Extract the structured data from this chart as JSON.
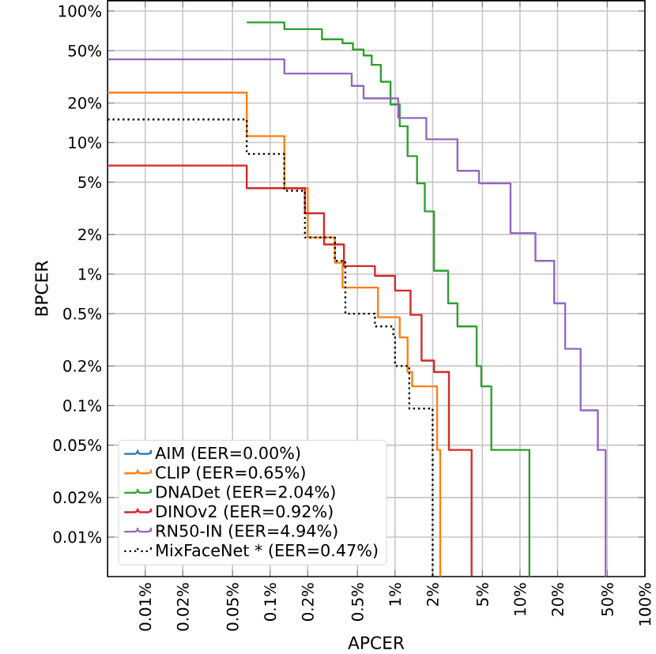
{
  "chart_data": {
    "type": "step",
    "xlabel": "APCER",
    "ylabel": "BPCER",
    "log": "xy",
    "grid": true,
    "legend": "bottom left",
    "xlim": [
      0.005,
      100
    ],
    "ylim": [
      0.005,
      120
    ],
    "xticks": [
      {
        "value": 0.01,
        "label": "0.01%"
      },
      {
        "value": 0.02,
        "label": "0.02%"
      },
      {
        "value": 0.05,
        "label": "0.05%"
      },
      {
        "value": 0.1,
        "label": "0.1%"
      },
      {
        "value": 0.2,
        "label": "0.2%"
      },
      {
        "value": 0.5,
        "label": "0.5%"
      },
      {
        "value": 1,
        "label": "1%"
      },
      {
        "value": 2,
        "label": "2%"
      },
      {
        "value": 5,
        "label": "5%"
      },
      {
        "value": 10,
        "label": "10%"
      },
      {
        "value": 20,
        "label": "20%"
      },
      {
        "value": 50,
        "label": "50%"
      },
      {
        "value": 100,
        "label": "100%"
      }
    ],
    "yticks": [
      {
        "value": 0.01,
        "label": "0.01%"
      },
      {
        "value": 0.02,
        "label": "0.02%"
      },
      {
        "value": 0.05,
        "label": "0.05%"
      },
      {
        "value": 0.1,
        "label": "0.1%"
      },
      {
        "value": 0.2,
        "label": "0.2%"
      },
      {
        "value": 0.5,
        "label": "0.5%"
      },
      {
        "value": 1,
        "label": "1%"
      },
      {
        "value": 2,
        "label": "2%"
      },
      {
        "value": 5,
        "label": "5%"
      },
      {
        "value": 10,
        "label": "10%"
      },
      {
        "value": 20,
        "label": "20%"
      },
      {
        "value": 50,
        "label": "50%"
      },
      {
        "value": 100,
        "label": "100%"
      }
    ],
    "series": [
      {
        "name": "AIM (EER=0.00%)",
        "color": "#1f77b4"
      },
      {
        "name": "CLIP (EER=0.65%)",
        "color": "#ff7f0e",
        "x": [
          0.005,
          0.065,
          0.13,
          0.2,
          0.33,
          0.38,
          0.73,
          1.09,
          1.26,
          1.37,
          2.17,
          2.3
        ],
        "values": [
          24,
          11.2,
          4.5,
          1.9,
          1.22,
          0.79,
          0.47,
          0.33,
          0.18,
          0.14,
          0.046,
          0.005
        ]
      },
      {
        "name": "DNADet (EER=2.04%)",
        "color": "#2ca02c",
        "x": [
          0.065,
          0.13,
          0.26,
          0.38,
          0.46,
          0.56,
          0.65,
          0.77,
          0.92,
          1.09,
          1.26,
          1.5,
          1.73,
          2.05,
          2.66,
          3.16,
          4.5,
          4.9,
          5.9,
          11.9
        ],
        "values": [
          82,
          73,
          61,
          57,
          51,
          46,
          39,
          29,
          19.5,
          13.3,
          7.9,
          4.9,
          3,
          1.06,
          0.6,
          0.4,
          0.2,
          0.14,
          0.046,
          0.005
        ]
      },
      {
        "name": "DINOv2 (EER=0.92%)",
        "color": "#d62728",
        "x": [
          0.005,
          0.065,
          0.19,
          0.27,
          0.39,
          0.69,
          1.0,
          1.33,
          1.63,
          2.05,
          2.7,
          4.1
        ],
        "values": [
          6.7,
          4.5,
          2.9,
          1.68,
          1.15,
          0.97,
          0.75,
          0.49,
          0.22,
          0.18,
          0.046,
          0.005
        ]
      },
      {
        "name": "RN50-IN (EER=4.94%)",
        "color": "#9467bd",
        "x": [
          0.005,
          0.13,
          0.45,
          0.56,
          1.06,
          1.78,
          3.16,
          4.7,
          8.4,
          13.3,
          18.8,
          23,
          30.6,
          42,
          48.5
        ],
        "values": [
          43,
          33.5,
          27,
          21.7,
          15.4,
          10.6,
          6.1,
          4.9,
          2.05,
          1.26,
          0.6,
          0.27,
          0.092,
          0.046,
          0.005
        ]
      },
      {
        "name": "MixFaceNet * (EER=0.47%)",
        "color": "#000000",
        "line_style": "dotted",
        "x": [
          0.005,
          0.065,
          0.13,
          0.19,
          0.33,
          0.4,
          0.69,
          0.97,
          1.0,
          1.3,
          2.0
        ],
        "values": [
          15,
          8.2,
          4.3,
          1.9,
          1.26,
          0.5,
          0.4,
          0.33,
          0.2,
          0.095,
          0.005
        ]
      }
    ]
  }
}
